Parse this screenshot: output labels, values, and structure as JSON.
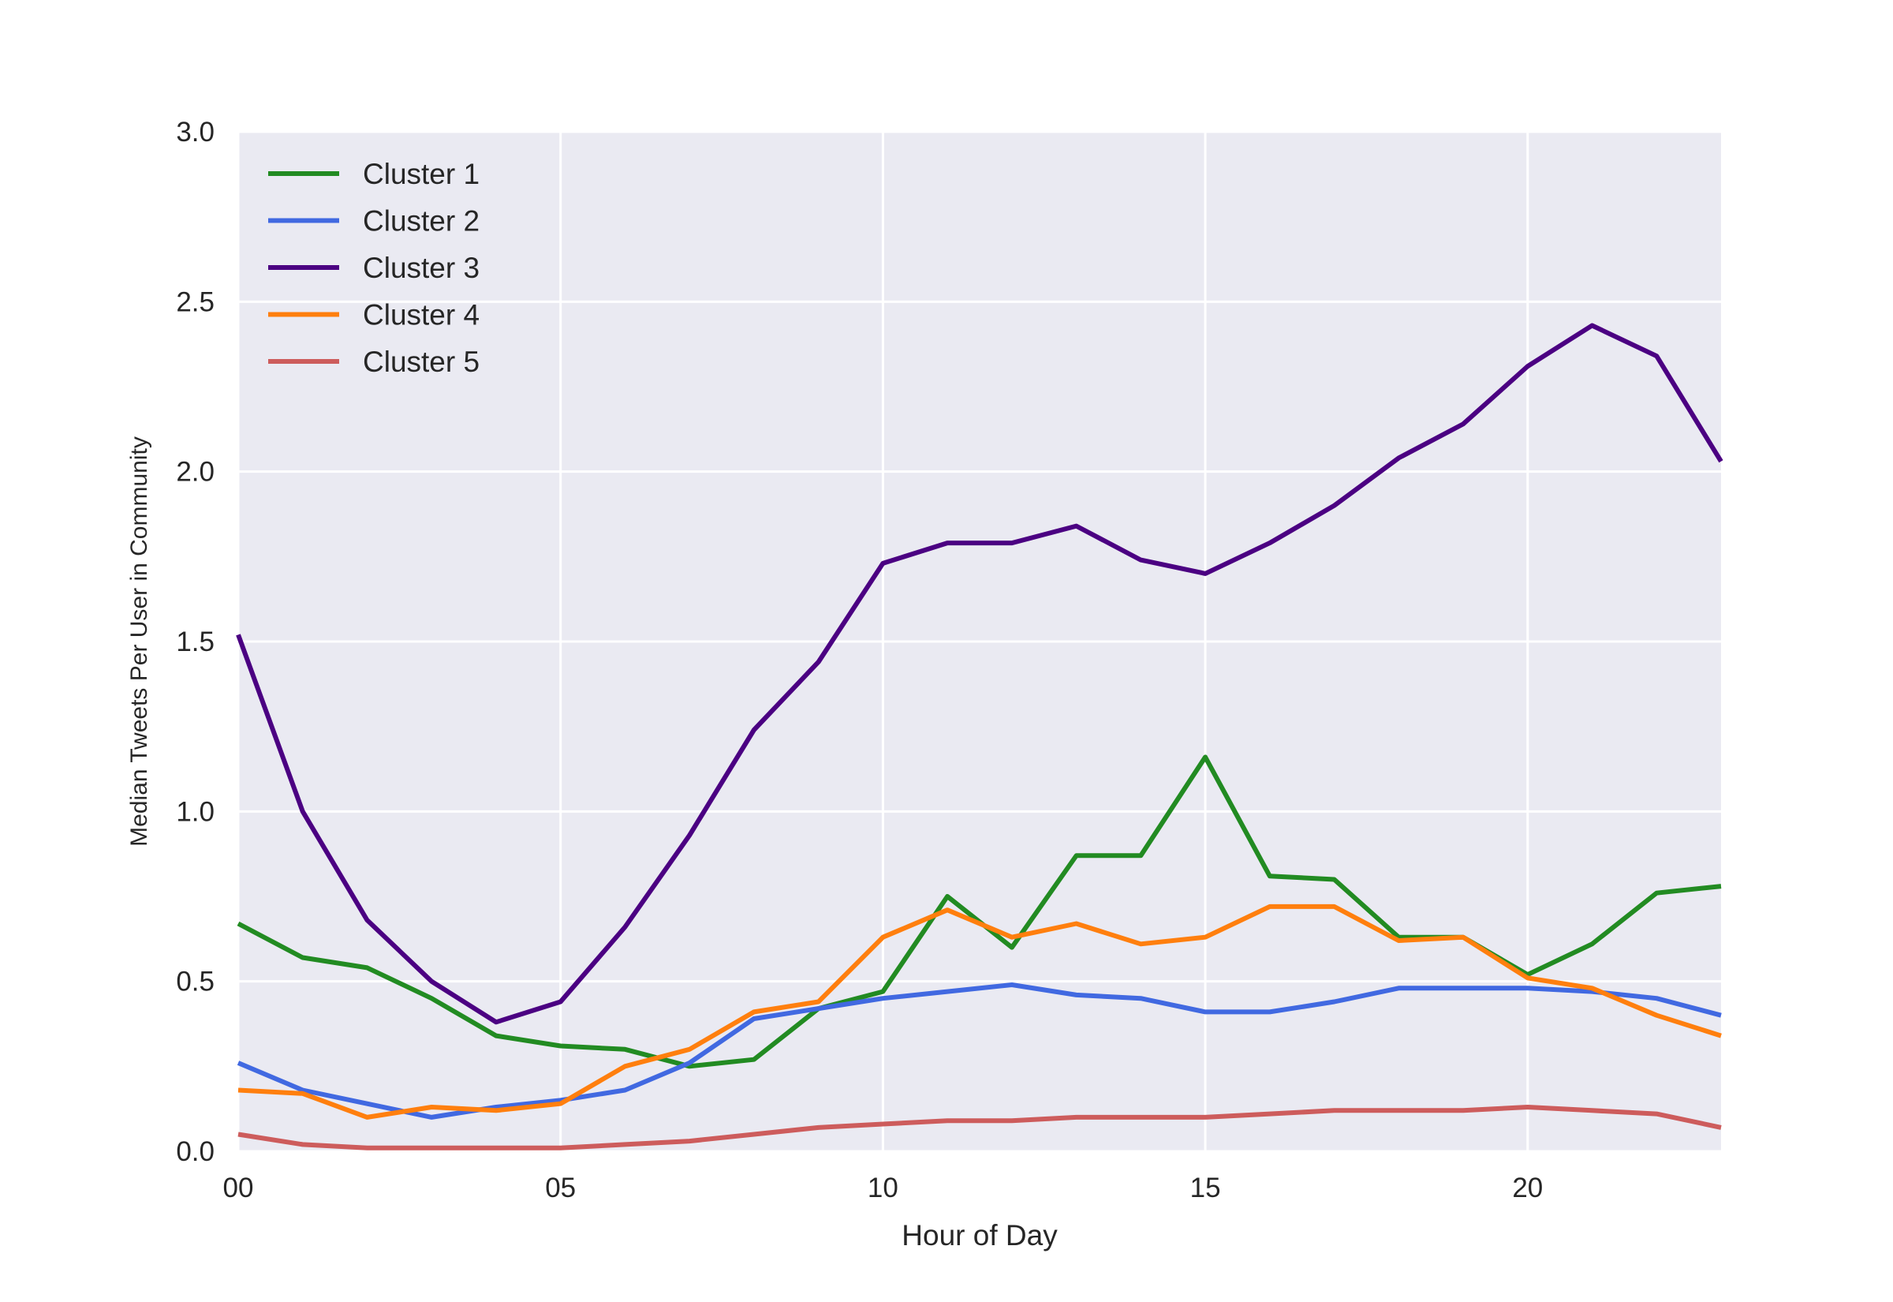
{
  "chart_data": {
    "type": "line",
    "title": "",
    "xlabel": "Hour of Day",
    "ylabel": "Median Tweets Per User in Community",
    "x": [
      0,
      1,
      2,
      3,
      4,
      5,
      6,
      7,
      8,
      9,
      10,
      11,
      12,
      13,
      14,
      15,
      16,
      17,
      18,
      19,
      20,
      21,
      22,
      23
    ],
    "xlim": [
      0,
      23
    ],
    "ylim": [
      0,
      3.0
    ],
    "xticks": [
      0,
      5,
      10,
      15,
      20
    ],
    "xtick_labels": [
      "00",
      "05",
      "10",
      "15",
      "20"
    ],
    "yticks": [
      0,
      0.5,
      1.0,
      1.5,
      2.0,
      2.5,
      3.0
    ],
    "ytick_labels": [
      "0.0",
      "0.5",
      "1.0",
      "1.5",
      "2.0",
      "2.5",
      "3.0"
    ],
    "grid": true,
    "background": "#eaeaf2",
    "legend_position": "top-left",
    "series": [
      {
        "name": "Cluster 1",
        "color": "#228b22",
        "values": [
          0.67,
          0.57,
          0.54,
          0.45,
          0.34,
          0.31,
          0.3,
          0.25,
          0.27,
          0.42,
          0.47,
          0.75,
          0.6,
          0.87,
          0.87,
          1.16,
          0.81,
          0.8,
          0.63,
          0.63,
          0.52,
          0.61,
          0.76,
          0.78
        ]
      },
      {
        "name": "Cluster 2",
        "color": "#4169e1",
        "values": [
          0.26,
          0.18,
          0.14,
          0.1,
          0.13,
          0.15,
          0.18,
          0.26,
          0.39,
          0.42,
          0.45,
          0.47,
          0.49,
          0.46,
          0.45,
          0.41,
          0.41,
          0.44,
          0.48,
          0.48,
          0.48,
          0.47,
          0.45,
          0.4
        ]
      },
      {
        "name": "Cluster 3",
        "color": "#4b0082",
        "values": [
          1.52,
          1.0,
          0.68,
          0.5,
          0.38,
          0.44,
          0.66,
          0.93,
          1.24,
          1.44,
          1.73,
          1.79,
          1.79,
          1.84,
          1.74,
          1.7,
          1.79,
          1.9,
          2.04,
          2.14,
          2.31,
          2.43,
          2.34,
          2.03
        ]
      },
      {
        "name": "Cluster 4",
        "color": "#ff7f0e",
        "values": [
          0.18,
          0.17,
          0.1,
          0.13,
          0.12,
          0.14,
          0.25,
          0.3,
          0.41,
          0.44,
          0.63,
          0.71,
          0.63,
          0.67,
          0.61,
          0.63,
          0.72,
          0.72,
          0.62,
          0.63,
          0.51,
          0.48,
          0.4,
          0.34
        ]
      },
      {
        "name": "Cluster 5",
        "color": "#cd5c5c",
        "values": [
          0.05,
          0.02,
          0.01,
          0.01,
          0.01,
          0.01,
          0.02,
          0.03,
          0.05,
          0.07,
          0.08,
          0.09,
          0.09,
          0.1,
          0.1,
          0.1,
          0.11,
          0.12,
          0.12,
          0.12,
          0.13,
          0.12,
          0.11,
          0.07
        ]
      }
    ]
  }
}
